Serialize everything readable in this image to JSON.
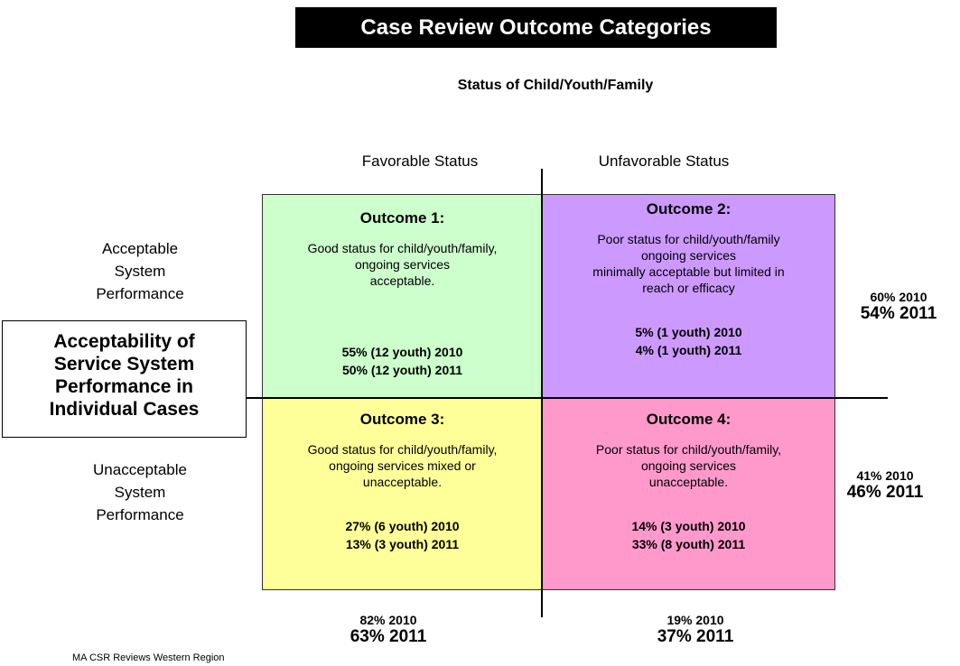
{
  "title": "Case Review Outcome Categories",
  "subtitle": "Status of Child/Youth/Family",
  "columns": [
    "Favorable Status",
    "Unfavorable Status"
  ],
  "rows": [
    [
      "Acceptable",
      "System",
      "Performance"
    ],
    [
      "Unacceptable",
      "System",
      "Performance"
    ]
  ],
  "axis_box": [
    "Acceptability of",
    "Service System",
    "Performance in",
    "Individual Cases"
  ],
  "quadrants": [
    {
      "title": "Outcome 1:",
      "description": [
        "Good status for child/youth/family,",
        "ongoing services",
        "acceptable."
      ],
      "stats": [
        "55% (12 youth) 2010",
        "50% (12 youth) 2011"
      ]
    },
    {
      "title": "Outcome 2:",
      "description": [
        "Poor status for child/youth/family",
        "ongoing services",
        "minimally acceptable but limited in",
        "reach or efficacy"
      ],
      "stats": [
        "5% (1 youth) 2010",
        "4% (1 youth) 2011"
      ]
    },
    {
      "title": "Outcome 3:",
      "description": [
        "Good status for child/youth/family,",
        "ongoing services mixed or",
        "unacceptable."
      ],
      "stats": [
        "27% (6 youth) 2010",
        "13% (3 youth) 2011"
      ]
    },
    {
      "title": "Outcome 4:",
      "description": [
        "Poor status for child/youth/family,",
        "ongoing services",
        "unacceptable."
      ],
      "stats": [
        "14% (3 youth) 2010",
        "33% (8 youth) 2011"
      ]
    }
  ],
  "row_totals": [
    [
      "60% 2010",
      "54% 2011"
    ],
    [
      "41% 2010",
      "46% 2011"
    ]
  ],
  "column_totals": [
    [
      "82% 2010",
      "63% 2011"
    ],
    [
      "19% 2010",
      "37% 2011"
    ]
  ],
  "footer": "MA CSR Reviews Western Region"
}
